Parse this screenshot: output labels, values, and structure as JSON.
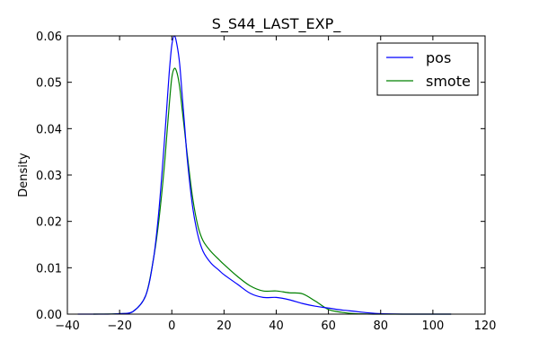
{
  "chart_data": {
    "type": "line",
    "title": "S_S44_LAST_EXP_",
    "xlabel": "",
    "ylabel": "Density",
    "xlim": [
      -40,
      120
    ],
    "ylim": [
      0,
      0.06
    ],
    "xticks": [
      -40,
      -20,
      0,
      20,
      40,
      60,
      80,
      100,
      120
    ],
    "xtick_labels": [
      "−40",
      "−20",
      "0",
      "20",
      "40",
      "60",
      "80",
      "100",
      "120"
    ],
    "yticks": [
      0,
      0.01,
      0.02,
      0.03,
      0.04,
      0.05,
      0.06
    ],
    "ytick_labels": [
      "0.00",
      "0.01",
      "0.02",
      "0.03",
      "0.04",
      "0.05",
      "0.06"
    ],
    "grid": false,
    "legend": "top-right",
    "series": [
      {
        "name": "pos",
        "color": "#0000ff",
        "x": [
          -36,
          -25,
          -20,
          -15,
          -10,
          -7,
          -5,
          -3,
          -2,
          -1,
          0,
          1,
          2,
          3,
          4,
          5,
          6,
          8,
          10,
          12,
          15,
          18,
          20,
          25,
          30,
          35,
          40,
          45,
          50,
          55,
          60,
          65,
          70,
          75,
          80,
          90,
          100,
          107
        ],
        "y": [
          0,
          0,
          0.0001,
          0.0005,
          0.004,
          0.012,
          0.022,
          0.036,
          0.044,
          0.052,
          0.058,
          0.06,
          0.058,
          0.054,
          0.047,
          0.04,
          0.033,
          0.023,
          0.017,
          0.0135,
          0.011,
          0.0095,
          0.0085,
          0.0065,
          0.0045,
          0.0036,
          0.0036,
          0.0031,
          0.0023,
          0.0017,
          0.0013,
          0.0009,
          0.0006,
          0.0003,
          0.0001,
          0,
          0,
          0
        ]
      },
      {
        "name": "smote",
        "color": "#008000",
        "x": [
          -30,
          -20,
          -15,
          -10,
          -7,
          -5,
          -3,
          -2,
          -1,
          0,
          1,
          2,
          3,
          4,
          5,
          6,
          8,
          10,
          12,
          15,
          18,
          20,
          25,
          30,
          35,
          40,
          45,
          50,
          55,
          60,
          65,
          70,
          80,
          90,
          100,
          107
        ],
        "y": [
          0,
          0.0001,
          0.0005,
          0.004,
          0.012,
          0.02,
          0.031,
          0.038,
          0.045,
          0.051,
          0.053,
          0.052,
          0.049,
          0.044,
          0.039,
          0.034,
          0.025,
          0.019,
          0.0158,
          0.0135,
          0.0118,
          0.0107,
          0.0082,
          0.0061,
          0.005,
          0.005,
          0.0046,
          0.0044,
          0.0028,
          0.001,
          0.0004,
          0.0001,
          0,
          0,
          0,
          0
        ]
      }
    ]
  }
}
